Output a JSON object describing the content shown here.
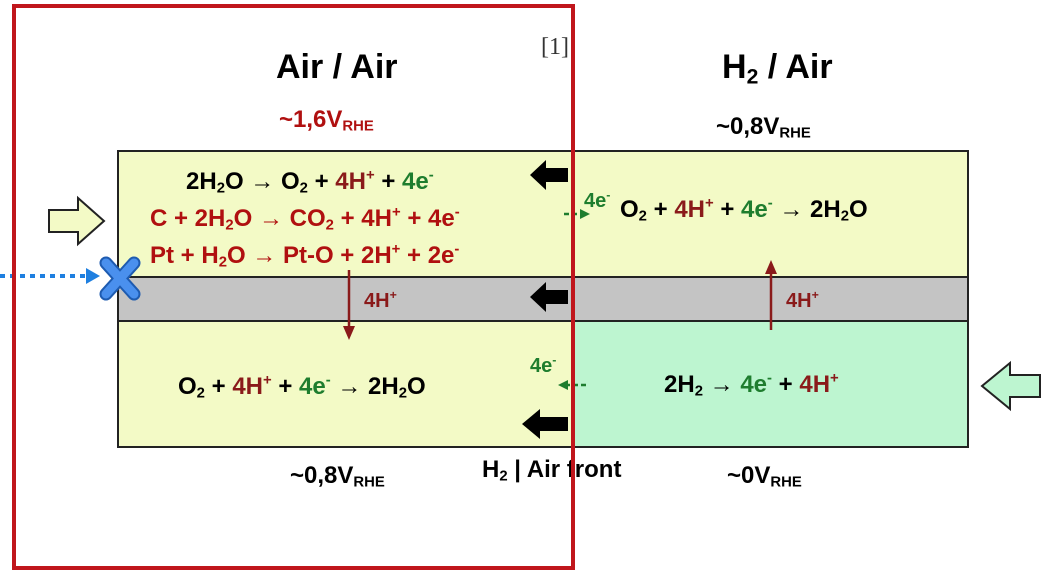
{
  "reference": "[1]",
  "left_panel": {
    "title": "Air / Air",
    "top_potential": {
      "prefix": "~1,6V",
      "sub": "RHE"
    },
    "bottom_potential": {
      "prefix": "~0,8V",
      "sub": "RHE"
    },
    "top_reactions": [
      "2H2O → O2 + 4H+ + 4e-",
      "C + 2H2O → CO2 + 4H+ + 4e-",
      "Pt + H2O → Pt-O + 2H+ + 2e-"
    ],
    "bottom_reaction": "O2 + 4H+ + 4e- → 2H2O",
    "membrane_label": "4H+"
  },
  "right_panel": {
    "title": "H2 / Air",
    "top_potential": {
      "prefix": "~0,8V",
      "sub": "RHE"
    },
    "bottom_potential": {
      "prefix": "~0V",
      "sub": "RHE"
    },
    "top_reaction": "O2 + 4H+ + 4e- → 2H2O",
    "bottom_reaction": "2H2 → 4e- + 4H+",
    "membrane_label": "4H+"
  },
  "front_label": "H2 | Air front",
  "electron_labels": {
    "top": "4e-",
    "bottom": "4e-"
  },
  "colors": {
    "highlight_box": "#c0161c",
    "cathode_layer": "#f3fac6",
    "anode_hydrogen_layer": "#bdf5d0",
    "membrane": "#c4c4c4",
    "proton_text": "#8a1a1a",
    "electron_text": "#1e7d2e",
    "potential_red": "#b01010",
    "blocked_flow": "#1e7fe0"
  }
}
